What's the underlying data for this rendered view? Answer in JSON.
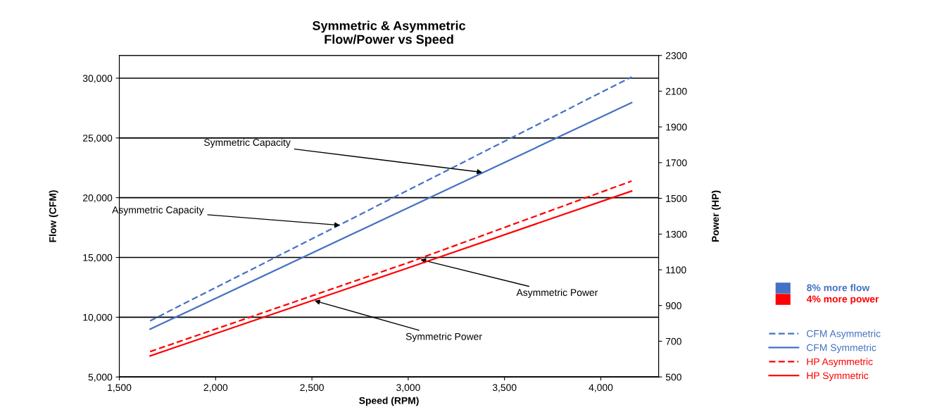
{
  "chart_data": {
    "type": "line",
    "title": "Symmetric & Asymmetric\nFlow/Power vs Speed",
    "xlabel": "Speed (RPM)",
    "ylabel": "Flow (CFM)",
    "y2label": "Power (HP)",
    "series": [
      {
        "name": "CFM Asymmetric",
        "color": "#4472c4",
        "line_style": "dashed",
        "x": [
          1660,
          4160
        ],
        "values": [
          9700,
          30100
        ]
      },
      {
        "name": "CFM Symmetric",
        "color": "#4472c4",
        "line_style": "solid",
        "x": [
          1660,
          4160
        ],
        "values": [
          9000,
          27950
        ]
      },
      {
        "name": "HP Asymmetric",
        "color": "#ff0000",
        "line_style": "dashed",
        "axis": "y2",
        "x": [
          1660,
          3000,
          4160
        ],
        "values": [
          642,
          1140,
          1597
        ]
      },
      {
        "name": "HP Symmetric",
        "color": "#ff0000",
        "line_style": "solid",
        "axis": "y2",
        "x": [
          1660,
          3000,
          4160
        ],
        "values": [
          618,
          1111,
          1541
        ]
      }
    ],
    "xlim": [
      1500,
      4300
    ],
    "xticks": [
      {
        "value": 1500,
        "label": "1,500"
      },
      {
        "value": 2000,
        "label": "2,000"
      },
      {
        "value": 2500,
        "label": "2,500"
      },
      {
        "value": 3000,
        "label": "3,000"
      },
      {
        "value": 3500,
        "label": "3,500"
      },
      {
        "value": 4000,
        "label": "4,000"
      }
    ],
    "ylim": [
      5000,
      31900
    ],
    "yticks": [
      {
        "value": 5000,
        "label": "5,000"
      },
      {
        "value": 10000,
        "label": "10,000"
      },
      {
        "value": 15000,
        "label": "15,000"
      },
      {
        "value": 20000,
        "label": "20,000"
      },
      {
        "value": 25000,
        "label": "25,000"
      },
      {
        "value": 30000,
        "label": "30,000"
      }
    ],
    "y2lim": [
      500,
      2300
    ],
    "y2ticks": [
      500,
      700,
      900,
      1100,
      1300,
      1500,
      1700,
      1900,
      2100,
      2300
    ],
    "grid": "y",
    "legend": "right",
    "marker": "none",
    "annotations": [
      {
        "text": "Symmetric Capacity",
        "x": 3395,
        "y": 22100
      },
      {
        "text": "Asymmetric Capacity",
        "x": 2655,
        "y": 17680
      },
      {
        "text": "Asymmetric Power",
        "x": 3054,
        "y": 14863
      },
      {
        "text": "Symmetric Power",
        "x": 2504,
        "y": 11426
      },
      "8% more flow",
      "4% more power"
    ]
  }
}
